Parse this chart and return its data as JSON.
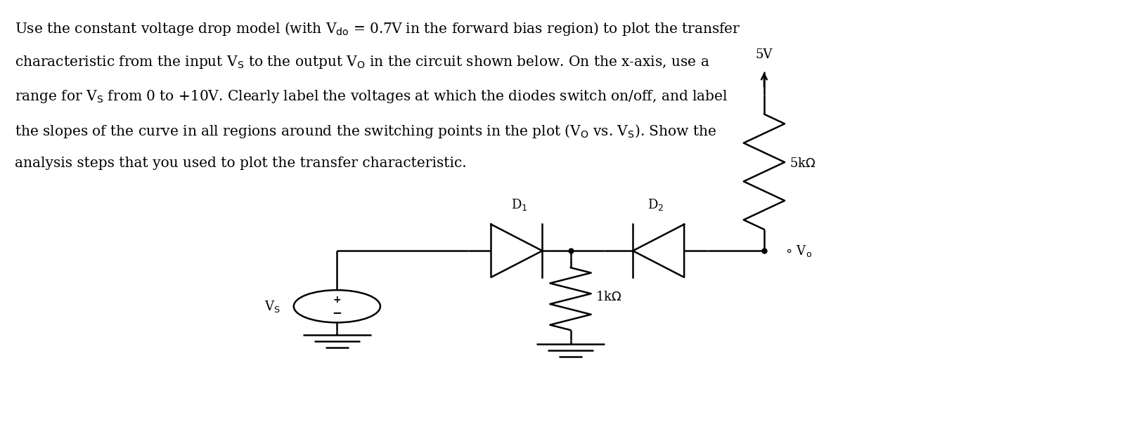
{
  "fig_width": 16.23,
  "fig_height": 6.11,
  "dpi": 100,
  "bg_color": "#ffffff",
  "text_color": "#000000",
  "line_color": "#000000",
  "line_width": 1.8,
  "font_size_body": 14.5,
  "font_size_label": 13,
  "font_size_small": 11,
  "paragraph": "Use the constant voltage drop model (with V$_{do}$ = 0.7V in the forward bias region) to plot the transfer\ncharacteristic from the input V$_S$ to the output V$_O$ in the circuit shown below. On the x-axis, use a\nrange for V$_S$ from 0 to +10V. Clearly label the voltages at which the diodes switch on/off, and label\nthe slopes of the curve in all regions around the switching points in the plot (V$_O$ vs. V$_S$). Show the\nanalysis steps that you used to plot the transfer characteristic."
}
